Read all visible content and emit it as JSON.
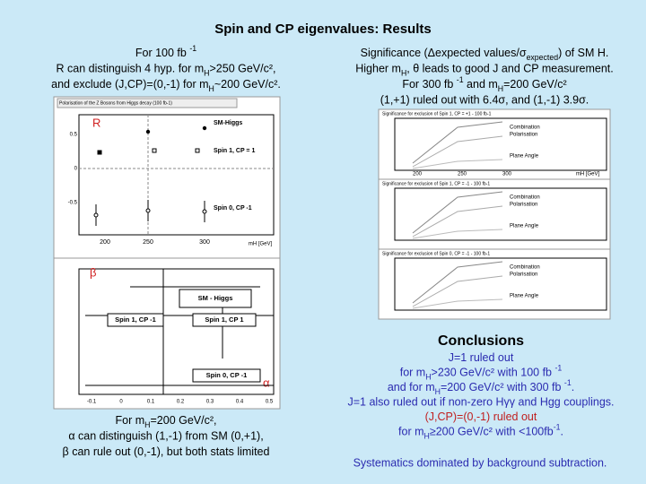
{
  "title": "Spin and CP eigenvalues: Results",
  "left_text": {
    "lines": [
      [
        {
          "t": "For 100 fb "
        },
        {
          "t": "-1",
          "sup": true
        }
      ],
      [
        {
          "t": "R can distinguish 4 hyp. for m"
        },
        {
          "t": "H",
          "sub": true
        },
        {
          "t": ">250 GeV/c²,"
        }
      ],
      [
        {
          "t": "and exclude (J,CP)=(0,-1) for m"
        },
        {
          "t": "H",
          "sub": true
        },
        {
          "t": "~200 GeV/c²."
        }
      ]
    ]
  },
  "right_text": {
    "lines": [
      [
        {
          "t": "Significance (Δexpected values/σ"
        },
        {
          "t": "expected",
          "sub": true
        },
        {
          "t": ") of SM H."
        }
      ],
      [
        {
          "t": "Higher m"
        },
        {
          "t": "H",
          "sub": true
        },
        {
          "t": ", θ leads to good J and CP measurement."
        }
      ],
      [
        {
          "t": "For 300 fb "
        },
        {
          "t": "-1",
          "sup": true
        },
        {
          "t": " and m"
        },
        {
          "t": "H",
          "sub": true
        },
        {
          "t": "=200 GeV/c²"
        }
      ],
      [
        {
          "t": "(1,+1) ruled out with 6.4σ, and (1,-1) 3.9σ."
        }
      ]
    ]
  },
  "plot_r": {
    "label": "R",
    "title": "Polarisation of the Z Bosons from Higgs decay (100 fb-1)",
    "legend": [
      "SM-Higgs",
      "Spin 1, CP = 1",
      "Spin 0, CP -1"
    ],
    "xticks": [
      "200",
      "250",
      "300"
    ],
    "xlabel": "mH [GeV]",
    "yticks": [
      "0.5",
      "0",
      "-0.5"
    ]
  },
  "plot_beta": {
    "label": "β",
    "alpha_label": "α",
    "legend": [
      "SM - Higgs",
      "Spin 1, CP -1",
      "Spin 1, CP 1",
      "Spin 0, CP -1"
    ],
    "xticks": [
      "-0.1",
      "0",
      "0.1",
      "0.2",
      "0.3",
      "0.4",
      "0.5"
    ]
  },
  "left_bottom": {
    "lines": [
      [
        {
          "t": "For m"
        },
        {
          "t": "H",
          "sub": true
        },
        {
          "t": "=200 GeV/c²,"
        }
      ],
      [
        {
          "t": "α can distinguish (1,-1) from SM (0,+1),"
        }
      ],
      [
        {
          "t": "β can rule out (0,-1), but both stats limited"
        }
      ]
    ]
  },
  "significance_plots": [
    {
      "title": "Significance for exclusion of Spin 1, CP = +1 - 100 fb-1",
      "labels": [
        "Combination",
        "Polarisation",
        "Plane Angle"
      ],
      "xticks": [
        "200",
        "250",
        "300"
      ],
      "xlabel": "mH [GeV]"
    },
    {
      "title": "Significance for exclusion of Spin 1, CP = -1 - 100 fb-1",
      "labels": [
        "Combination",
        "Polarisation",
        "Plane Angle"
      ]
    },
    {
      "title": "Significance for exclusion of Spin 0, CP = -1 - 100 fb-1",
      "labels": [
        "Combination",
        "Polarisation",
        "Plane Angle"
      ]
    }
  ],
  "conclusions": {
    "heading": "Conclusions",
    "lines": [
      {
        "color": "#2b2bb0",
        "segments": [
          {
            "t": "J=1 ruled out"
          }
        ]
      },
      {
        "color": "#2b2bb0",
        "segments": [
          {
            "t": "for m"
          },
          {
            "t": "H",
            "sub": true
          },
          {
            "t": ">230 GeV/c² with 100 fb "
          },
          {
            "t": "-1",
            "sup": true
          }
        ]
      },
      {
        "color": "#2b2bb0",
        "segments": [
          {
            "t": "and for m"
          },
          {
            "t": "H",
            "sub": true
          },
          {
            "t": "=200 GeV/c² with 300 fb "
          },
          {
            "t": "-1",
            "sup": true
          },
          {
            "t": "."
          }
        ]
      },
      {
        "color": "#2b2bb0",
        "segments": [
          {
            "t": "J=1 also ruled out if non-zero Hγγ and Hgg couplings."
          }
        ]
      },
      {
        "color": "#c02020",
        "segments": [
          {
            "t": "(J,CP)=(0,-1) ruled out"
          }
        ]
      },
      {
        "color": "#2b2bb0",
        "segments": [
          {
            "t": "for m"
          },
          {
            "t": "H",
            "sub": true
          },
          {
            "t": "≥200 GeV/c² with <100fb"
          },
          {
            "t": "-1",
            "sup": true
          },
          {
            "t": "."
          }
        ]
      }
    ],
    "footer": "Systematics dominated by background subtraction."
  }
}
